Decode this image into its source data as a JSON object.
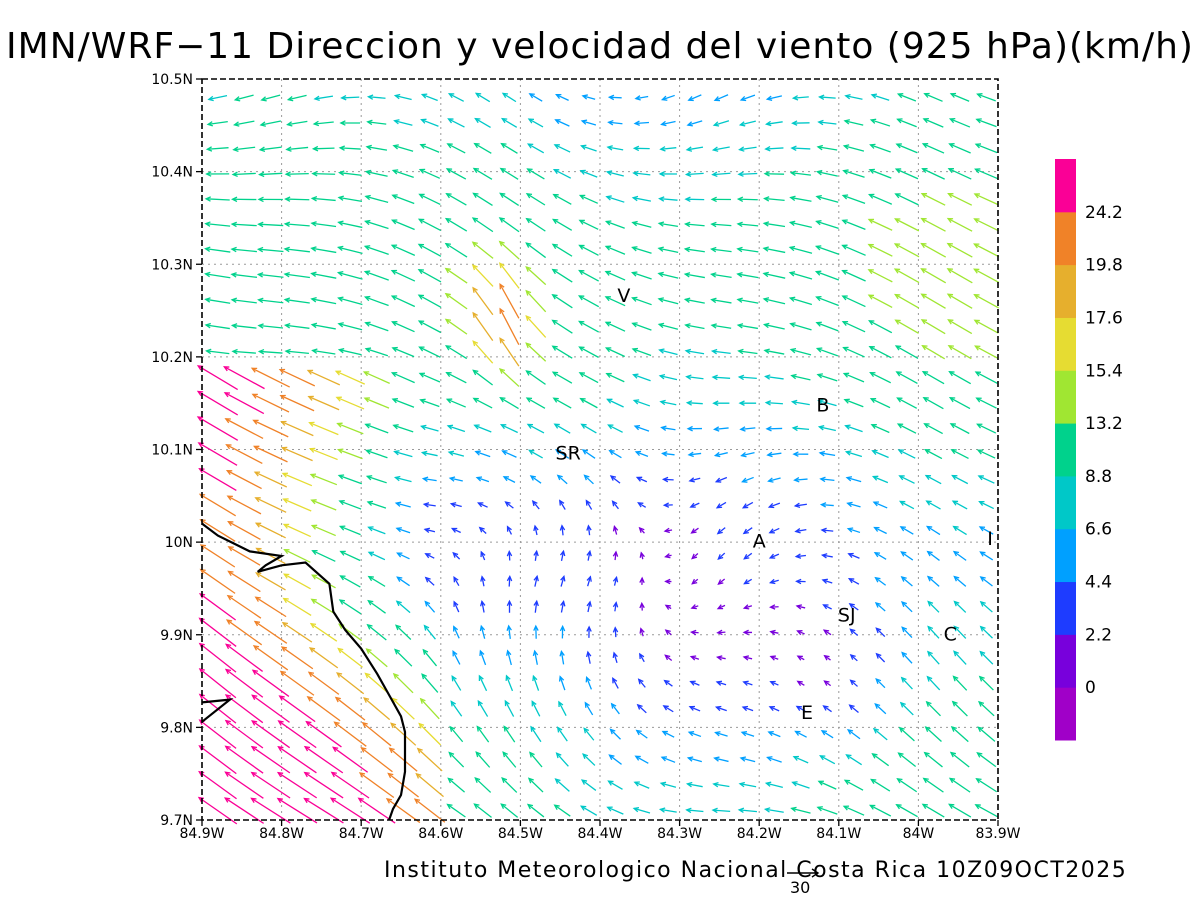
{
  "title": "IMN/WRF−11 Direccion y velocidad del viento (925 hPa)(km/h)",
  "credit": "Instituto Meteorologico Nacional Costa Rica 10Z09OCT2025",
  "reference_vector": {
    "label": "30",
    "speed_kmh": 30
  },
  "chart_data": {
    "type": "vector-field-map",
    "title": "IMN/WRF−11 Direccion y velocidad del viento (925 hPa)(km/h)",
    "xlabel": "",
    "ylabel": "",
    "x_range": [
      -84.9,
      -83.9
    ],
    "y_range": [
      9.7,
      10.5
    ],
    "x_ticks": [
      "84.9W",
      "84.8W",
      "84.7W",
      "84.6W",
      "84.5W",
      "84.4W",
      "84.3W",
      "84.2W",
      "84.1W",
      "84W",
      "83.9W"
    ],
    "y_ticks": [
      "9.7N",
      "9.8N",
      "9.9N",
      "10N",
      "10.1N",
      "10.2N",
      "10.3N",
      "10.4N",
      "10.5N"
    ],
    "grid": true,
    "colorbar": {
      "placement": "right",
      "levels": [
        "0",
        "2.2",
        "4.4",
        "6.6",
        "8.8",
        "13.2",
        "15.4",
        "17.6",
        "19.8",
        "24.2"
      ],
      "colors": [
        "#a000c8",
        "#7800dc",
        "#1e3cff",
        "#00a0ff",
        "#00c8c8",
        "#00d28c",
        "#a0e632",
        "#e6dc32",
        "#e6af2d",
        "#f08228",
        "#fa0096"
      ]
    },
    "place_labels": [
      {
        "label": "V",
        "lon": -84.37,
        "lat": 10.265
      },
      {
        "label": "B",
        "lon": -84.12,
        "lat": 10.147
      },
      {
        "label": "SR",
        "lon": -84.44,
        "lat": 10.095
      },
      {
        "label": "A",
        "lon": -84.2,
        "lat": 10.0
      },
      {
        "label": "I",
        "lon": -83.91,
        "lat": 10.003
      },
      {
        "label": "SJ",
        "lon": -84.09,
        "lat": 9.92
      },
      {
        "label": "C",
        "lon": -83.96,
        "lat": 9.9
      },
      {
        "label": "E",
        "lon": -84.14,
        "lat": 9.815
      }
    ],
    "coastline": [
      {
        "lon": -84.9,
        "lat": 10.02
      },
      {
        "lon": -84.88,
        "lat": 10.007
      },
      {
        "lon": -84.84,
        "lat": 9.99
      },
      {
        "lon": -84.8,
        "lat": 9.985
      },
      {
        "lon": -84.82,
        "lat": 9.975
      },
      {
        "lon": -84.83,
        "lat": 9.968
      },
      {
        "lon": -84.8,
        "lat": 9.975
      },
      {
        "lon": -84.77,
        "lat": 9.978
      },
      {
        "lon": -84.74,
        "lat": 9.955
      },
      {
        "lon": -84.735,
        "lat": 9.925
      },
      {
        "lon": -84.72,
        "lat": 9.905
      },
      {
        "lon": -84.7,
        "lat": 9.885
      },
      {
        "lon": -84.68,
        "lat": 9.858
      },
      {
        "lon": -84.665,
        "lat": 9.835
      },
      {
        "lon": -84.65,
        "lat": 9.812
      },
      {
        "lon": -84.645,
        "lat": 9.795
      },
      {
        "lon": -84.645,
        "lat": 9.775
      },
      {
        "lon": -84.645,
        "lat": 9.752
      },
      {
        "lon": -84.65,
        "lat": 9.727
      },
      {
        "lon": -84.66,
        "lat": 9.712
      },
      {
        "lon": -84.665,
        "lat": 9.7
      }
    ],
    "coastline_inset": [
      {
        "lon": -84.9,
        "lat": 9.827
      },
      {
        "lon": -84.865,
        "lat": 9.83
      },
      {
        "lon": -84.9,
        "lat": 9.806
      }
    ]
  }
}
